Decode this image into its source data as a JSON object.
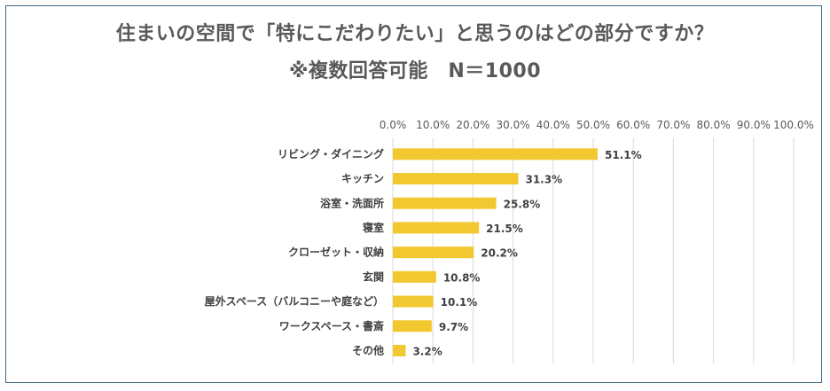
{
  "chart_data": {
    "type": "bar",
    "orientation": "horizontal",
    "title": "住まいの空間で「特にこだわりたい」と思うのはどの部分ですか？",
    "subtitle": "※複数回答可能　N＝1000",
    "categories": [
      "リビング・ダイニング",
      "キッチン",
      "浴室・洗面所",
      "寝室",
      "クローゼット・収納",
      "玄関",
      "屋外スペース（バルコニーや庭など）",
      "ワークスペース・書斎",
      "その他"
    ],
    "values": [
      51.1,
      31.3,
      25.8,
      21.5,
      20.2,
      10.8,
      10.1,
      9.7,
      3.2
    ],
    "value_labels": [
      "51.1%",
      "31.3%",
      "25.8%",
      "21.5%",
      "20.2%",
      "10.8%",
      "10.1%",
      "9.7%",
      "3.2%"
    ],
    "xticks": [
      "0.0%",
      "10.0%",
      "20.0%",
      "30.0%",
      "40.0%",
      "50.0%",
      "60.0%",
      "70.0%",
      "80.0%",
      "90.0%",
      "100.0%"
    ],
    "xlim": [
      0,
      100
    ],
    "grid": true,
    "bar_color": "#f2c830",
    "grid_color": "#d9d9d9"
  }
}
